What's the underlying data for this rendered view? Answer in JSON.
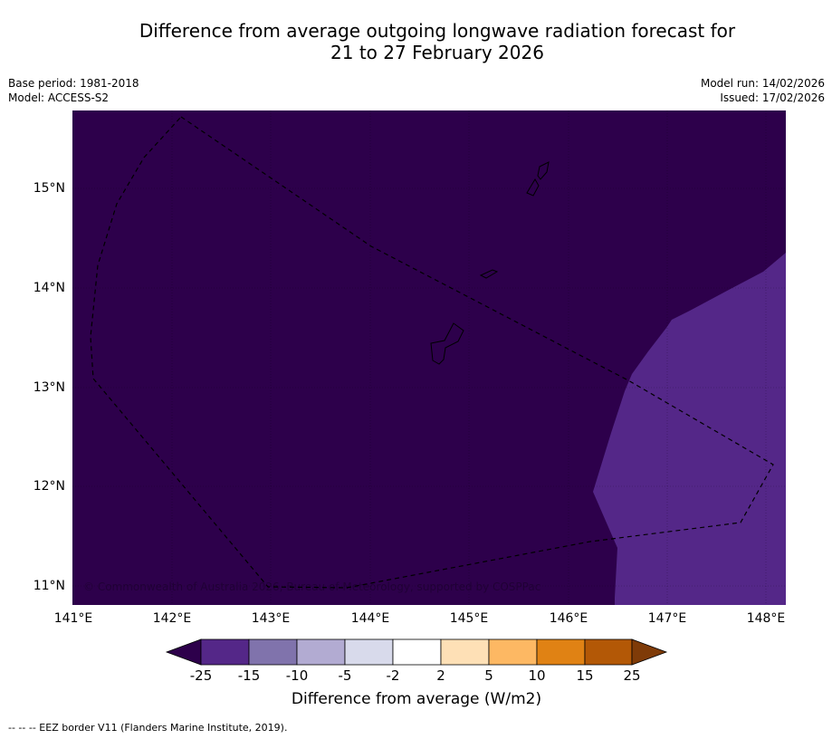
{
  "title": {
    "line1": "Difference from average outgoing longwave radiation forecast for",
    "line2": "21 to 27 February 2026"
  },
  "meta": {
    "base_period": "Base period: 1981-2018",
    "model": "Model: ACCESS-S2",
    "model_run": "Model run: 14/02/2026",
    "issued": "Issued: 17/02/2026"
  },
  "map": {
    "lat_labels": [
      "15°N",
      "14°N",
      "13°N",
      "12°N",
      "11°N"
    ],
    "lon_labels": [
      "141°E",
      "142°E",
      "143°E",
      "144°E",
      "145°E",
      "146°E",
      "147°E",
      "148°E"
    ],
    "copyright": "© Commonwealth of Australia 2026, Bureau of Meteorology, supported by COSPPac",
    "colors": {
      "background_field": "#2d004b",
      "anomaly_area": "#542788",
      "coast": "#000000",
      "eez_border": "#000000"
    }
  },
  "colorbar": {
    "labels": [
      "-25",
      "-15",
      "-10",
      "-5",
      "-2",
      "2",
      "5",
      "10",
      "15",
      "25"
    ],
    "colors": [
      "#2d004b",
      "#542788",
      "#8073ac",
      "#b2abd2",
      "#d8daeb",
      "#ffffff",
      "#fee0b6",
      "#fdb863",
      "#e08214",
      "#b35806",
      "#7f3b08"
    ],
    "title": "Difference from average (W/m2)"
  },
  "footnote": "--  --  -- EEZ border V11 (Flanders Marine Institute, 2019)."
}
